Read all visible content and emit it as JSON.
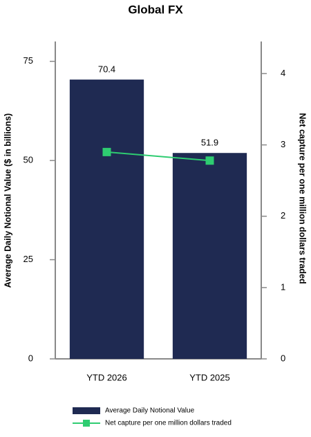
{
  "chart_data": {
    "type": "bar-line",
    "title": "Global FX",
    "categories": [
      "YTD 2026",
      "YTD 2025"
    ],
    "series": [
      {
        "name": "Average Daily Notional Value",
        "type": "bar",
        "color": "#1f2a52",
        "values": [
          70.4,
          51.9
        ],
        "axis": "y"
      },
      {
        "name": "Net capture per one million dollars traded",
        "type": "line",
        "color": "#2ecc71",
        "values": [
          2.9,
          2.78
        ],
        "axis": "y2"
      }
    ],
    "ylabel": "Average Daily Notional Value ($ in billions)",
    "y2label": "Net capture per one million dollars traded",
    "ylim": [
      0,
      80
    ],
    "yticks": [
      0,
      25,
      50,
      75
    ],
    "y2lim": [
      0,
      4.45
    ],
    "y2ticks": [
      0,
      1,
      2,
      3,
      4
    ],
    "legend": "bottom"
  }
}
